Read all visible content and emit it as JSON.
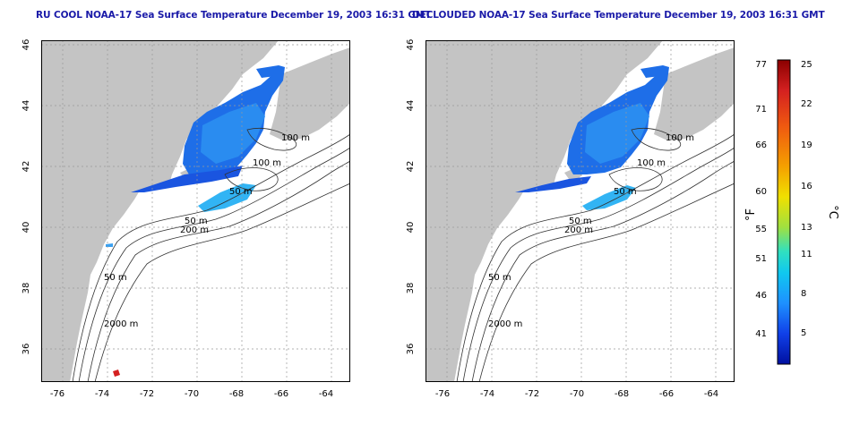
{
  "titles": {
    "left": "RU COOL NOAA-17 Sea Surface Temperature December 19, 2003 16:31 GMT",
    "right": "DECLOUDED NOAA-17 Sea Surface Temperature December 19, 2003 16:31 GMT"
  },
  "axes": {
    "lon_ticks": [
      "-76",
      "-74",
      "-72",
      "-70",
      "-68",
      "-66",
      "-64"
    ],
    "lat_ticks": [
      "46",
      "44",
      "42",
      "40",
      "38",
      "36"
    ]
  },
  "contour_labels": {
    "left": [
      "100 m",
      "100 m",
      "50 m",
      "50 m",
      "200 m",
      "50 m",
      "2000 m"
    ],
    "right": [
      "100 m",
      "100 m",
      "50 m",
      "50 m",
      "200 m",
      "50 m",
      "2000 m"
    ]
  },
  "colorbar": {
    "fahrenheit_ticks": [
      "77",
      "71",
      "66",
      "60",
      "55",
      "51",
      "46",
      "41"
    ],
    "celsius_ticks": [
      "25",
      "22",
      "19",
      "16",
      "13",
      "11",
      "8",
      "5"
    ],
    "f_unit": "°F",
    "c_unit": "°C",
    "colors": [
      "#8b0000",
      "#d42020",
      "#f05a10",
      "#f5a000",
      "#f0e000",
      "#a0e040",
      "#30e0c0",
      "#10c8f0",
      "#1e90ff",
      "#1040e8",
      "#0010a0"
    ]
  }
}
